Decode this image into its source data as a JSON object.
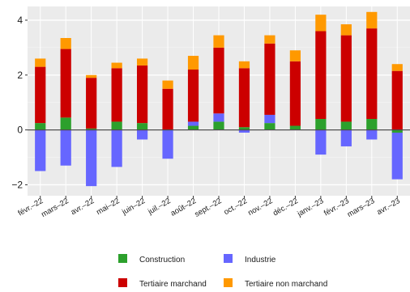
{
  "chart_data": {
    "type": "bar",
    "stacked": true,
    "categories": [
      "févr.–22",
      "mars–22",
      "avr.–22",
      "mai–22",
      "juin–22",
      "juil.–22",
      "août–22",
      "sept.–22",
      "oct.–22",
      "nov.–22",
      "déc.–22",
      "janv.–23",
      "févr.–23",
      "mars–23",
      "avr.–23"
    ],
    "series": [
      {
        "name": "Construction",
        "color": "#2ca02c",
        "values": [
          0.25,
          0.45,
          0.05,
          0.3,
          0.25,
          0.0,
          0.15,
          0.3,
          0.1,
          0.25,
          0.15,
          0.4,
          0.3,
          0.4,
          -0.1
        ]
      },
      {
        "name": "Industrie",
        "color": "#6666ff",
        "values": [
          -1.5,
          -1.3,
          -2.05,
          -1.35,
          -0.35,
          -1.05,
          0.15,
          0.3,
          -0.1,
          0.3,
          0.0,
          -0.9,
          -0.6,
          -0.35,
          -1.7
        ]
      },
      {
        "name": "Tertiaire marchand",
        "color": "#cc0000",
        "values": [
          2.05,
          2.5,
          1.85,
          1.95,
          2.1,
          1.5,
          1.9,
          2.4,
          2.15,
          2.6,
          2.35,
          3.2,
          3.15,
          3.3,
          2.15
        ]
      },
      {
        "name": "Tertiaire non marchand",
        "color": "#ff9900",
        "values": [
          0.3,
          0.4,
          0.1,
          0.2,
          0.25,
          0.3,
          0.5,
          0.45,
          0.25,
          0.3,
          0.4,
          0.6,
          0.4,
          0.6,
          0.25
        ]
      }
    ],
    "ylim": [
      -2.4,
      4.5
    ],
    "yticks": [
      -2,
      0,
      2,
      4
    ],
    "ytick_labels": [
      "−2",
      "0",
      "2",
      "4"
    ],
    "grid": true,
    "legend_position": "bottom"
  }
}
